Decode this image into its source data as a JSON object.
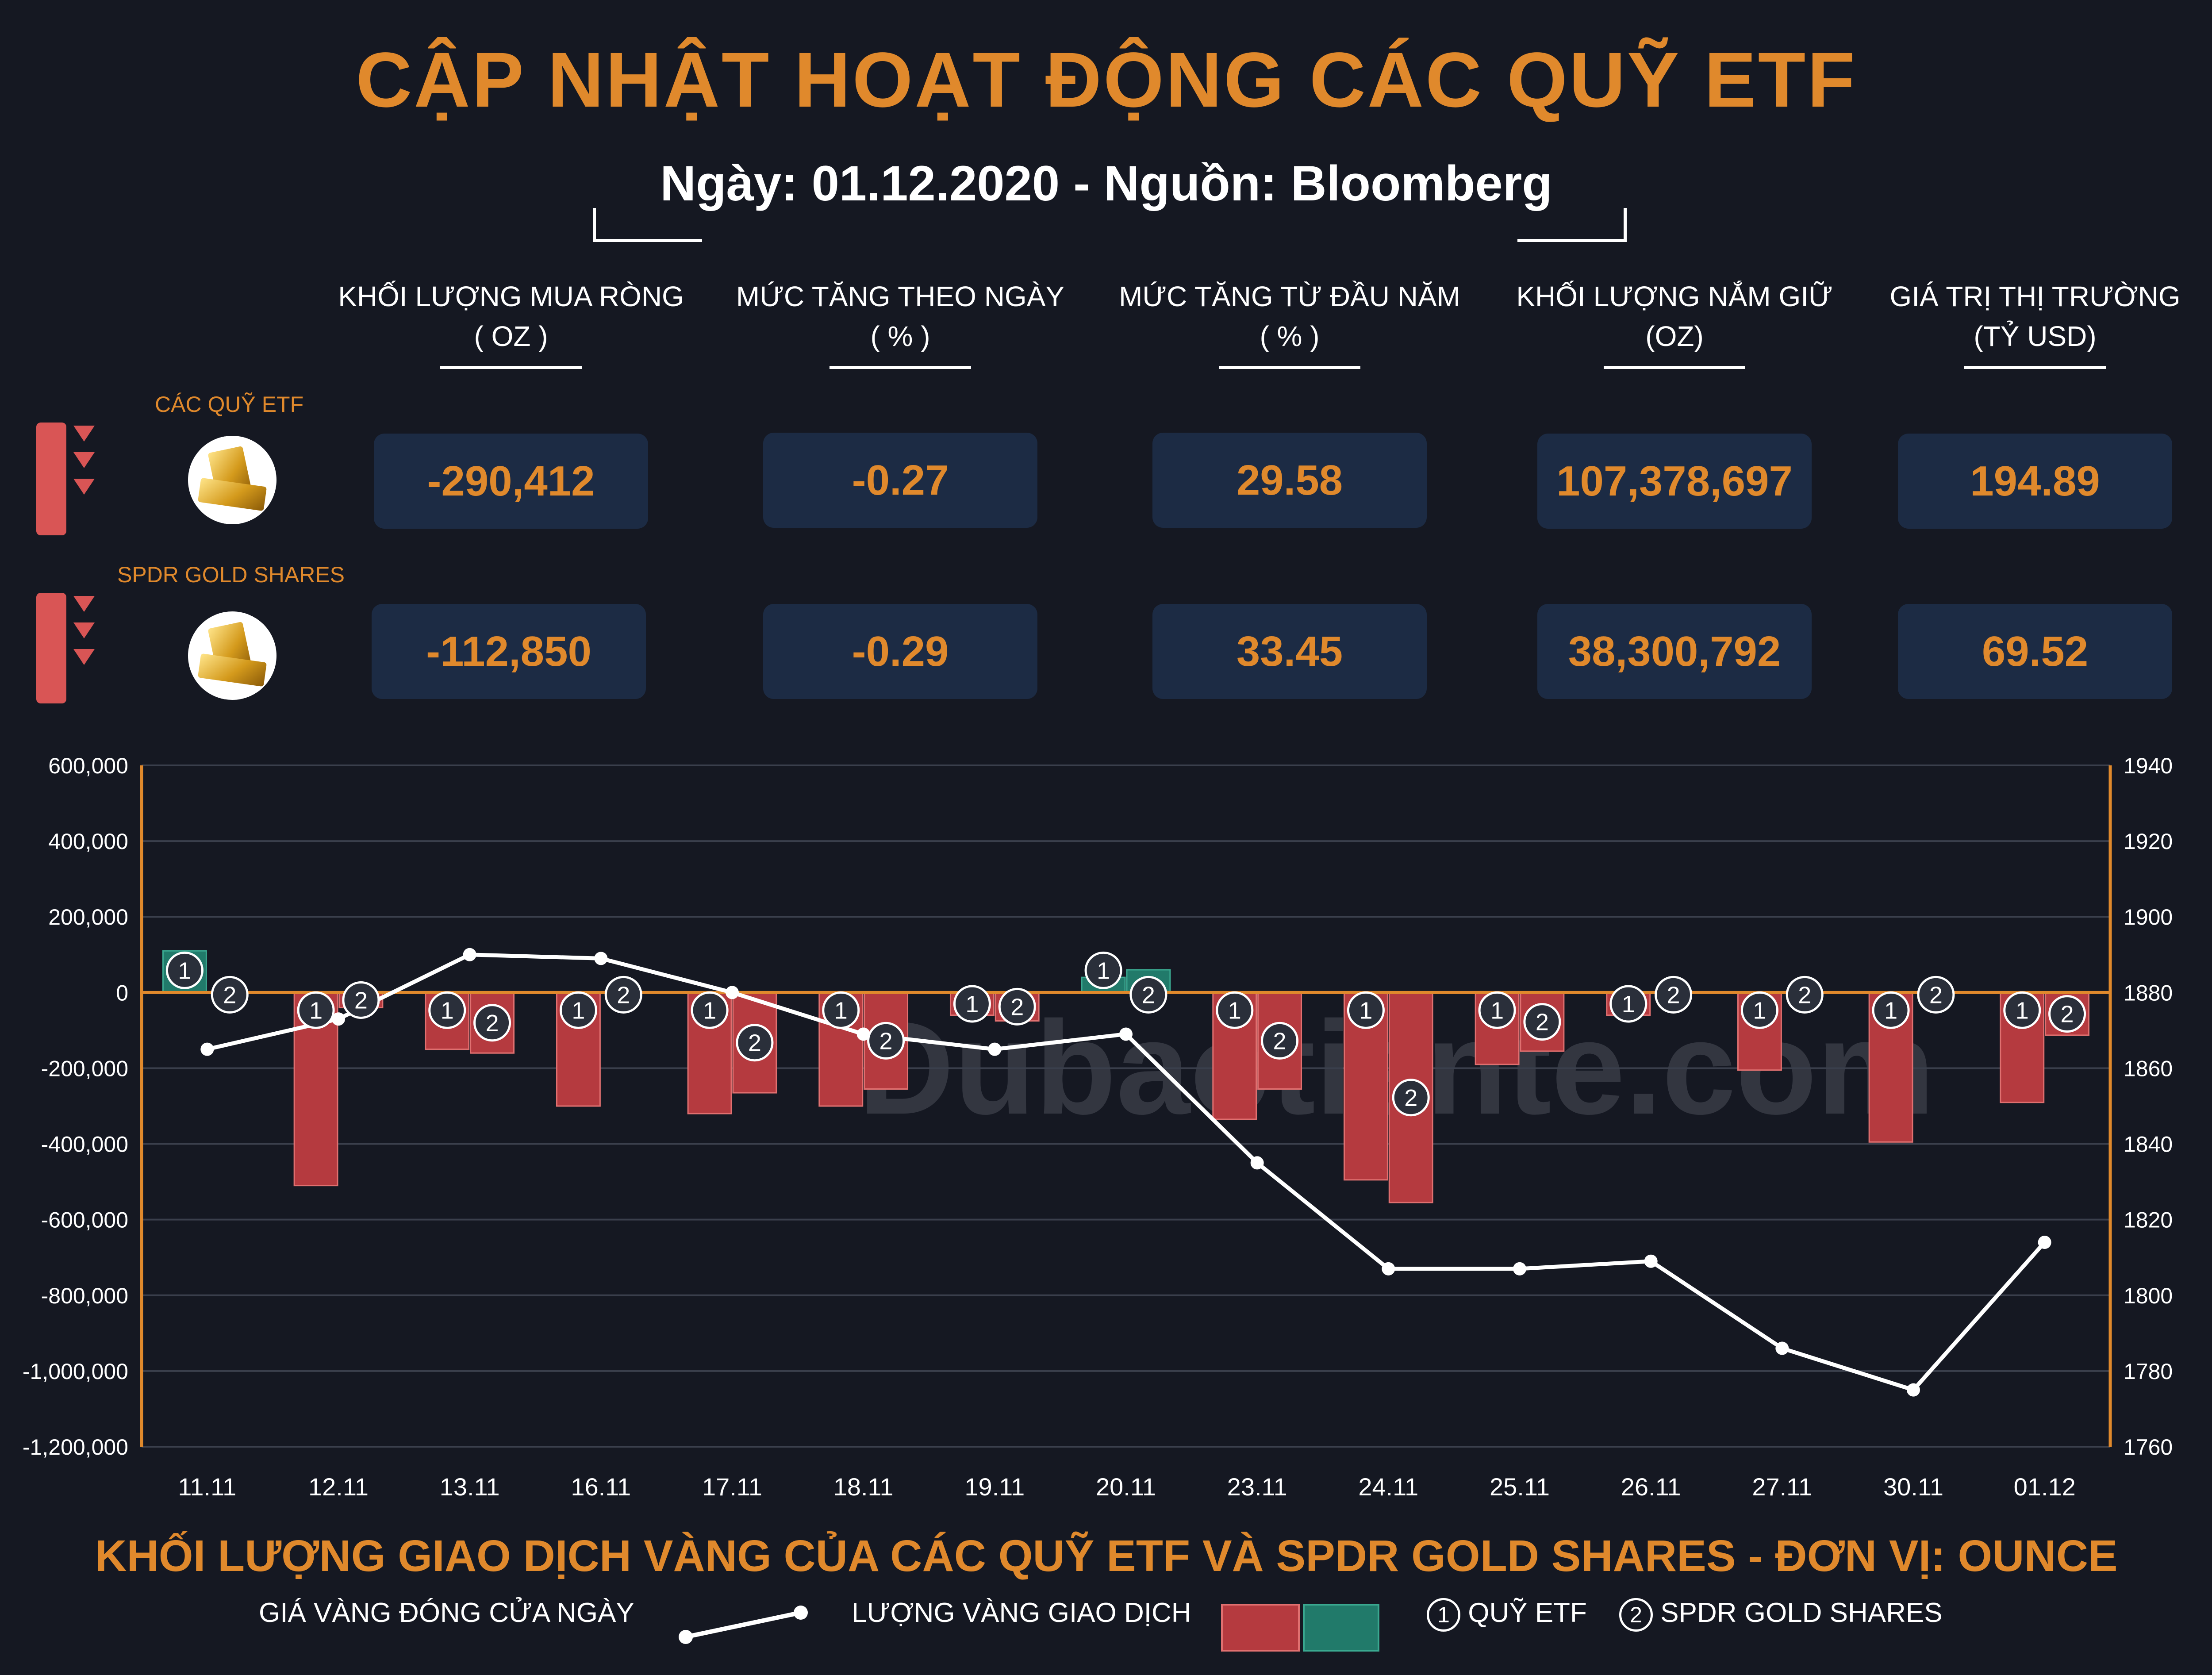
{
  "header": {
    "title": "CẬP NHẬT HOẠT ĐỘNG CÁC QUỸ ETF",
    "subtitle": "Ngày: 01.12.2020 - Nguồn: Bloomberg"
  },
  "columns": [
    {
      "label": "KHỐI LƯỢNG MUA RÒNG",
      "unit": "( OZ )"
    },
    {
      "label": "MỨC TĂNG THEO NGÀY",
      "unit": "( % )"
    },
    {
      "label": "MỨC TĂNG TỪ ĐẦU NĂM",
      "unit": "( % )"
    },
    {
      "label": "KHỐI LƯỢNG NẮM GIỮ",
      "unit": "(OZ)"
    },
    {
      "label": "GIÁ TRỊ THỊ TRƯỜNG",
      "unit": "(TỶ USD)"
    }
  ],
  "rows": [
    {
      "label": "CÁC QUỸ ETF",
      "values": [
        "-290,412",
        "-0.27",
        "29.58",
        "107,378,697",
        "194.89"
      ]
    },
    {
      "label": "SPDR GOLD SHARES",
      "values": [
        "-112,850",
        "-0.29",
        "33.45",
        "38,300,792",
        "69.52"
      ]
    }
  ],
  "chart_data": {
    "type": "bar",
    "categories": [
      "11.11",
      "12.11",
      "13.11",
      "16.11",
      "17.11",
      "18.11",
      "19.11",
      "20.11",
      "23.11",
      "24.11",
      "25.11",
      "26.11",
      "27.11",
      "30.11",
      "01.12"
    ],
    "series": [
      {
        "name": "QUỸ ETF",
        "type": "bar",
        "axis": "left",
        "values": [
          110000,
          -510000,
          -150000,
          -300000,
          -320000,
          -300000,
          -60000,
          40000,
          -335000,
          -495000,
          -190000,
          -60000,
          -205000,
          -395000,
          -290412
        ]
      },
      {
        "name": "SPDR GOLD SHARES",
        "type": "bar",
        "axis": "left",
        "values": [
          0,
          -40000,
          -160000,
          0,
          -265000,
          -255000,
          -75000,
          60000,
          -255000,
          -555000,
          -155000,
          0,
          0,
          0,
          -112850
        ]
      },
      {
        "name": "GIÁ VÀNG ĐÓNG CỬA NGÀY",
        "type": "line",
        "axis": "right",
        "values": [
          1865,
          1873,
          1890,
          1889,
          1880,
          1869,
          1865,
          1869,
          1835,
          1807,
          1807,
          1809,
          1786,
          1775,
          1814
        ]
      }
    ],
    "yleft": {
      "ticks": [
        "600,000",
        "400,000",
        "200,000",
        "0",
        "-200,000",
        "-400,000",
        "-600,000",
        "-800,000",
        "-1,000,000",
        "-1,200,000"
      ],
      "min": -1200000,
      "max": 600000
    },
    "yright": {
      "ticks": [
        "1940",
        "1920",
        "1900",
        "1880",
        "1860",
        "1840",
        "1820",
        "1800",
        "1780",
        "1760"
      ],
      "min": 1760,
      "max": 1940
    },
    "grid": true,
    "colors": {
      "negative": "#b53a3f",
      "positive": "#217a6a",
      "line": "#ffffff",
      "axis": "#e0892c",
      "zero": "#e0892c"
    }
  },
  "chart_title": "KHỐI LƯỢNG GIAO DỊCH VÀNG CỦA CÁC QUỸ ETF VÀ SPDR GOLD SHARES - ĐƠN VỊ: OUNCE",
  "legend": {
    "line_label": "GIÁ VÀNG ĐÓNG CỬA NGÀY",
    "bar_label": "LƯỢNG VÀNG GIAO DỊCH",
    "etf_num": "1",
    "etf_label": "QUỸ ETF",
    "spdr_num": "2",
    "spdr_label": "SPDR GOLD SHARES"
  },
  "watermark": "Dubaotiente.com"
}
